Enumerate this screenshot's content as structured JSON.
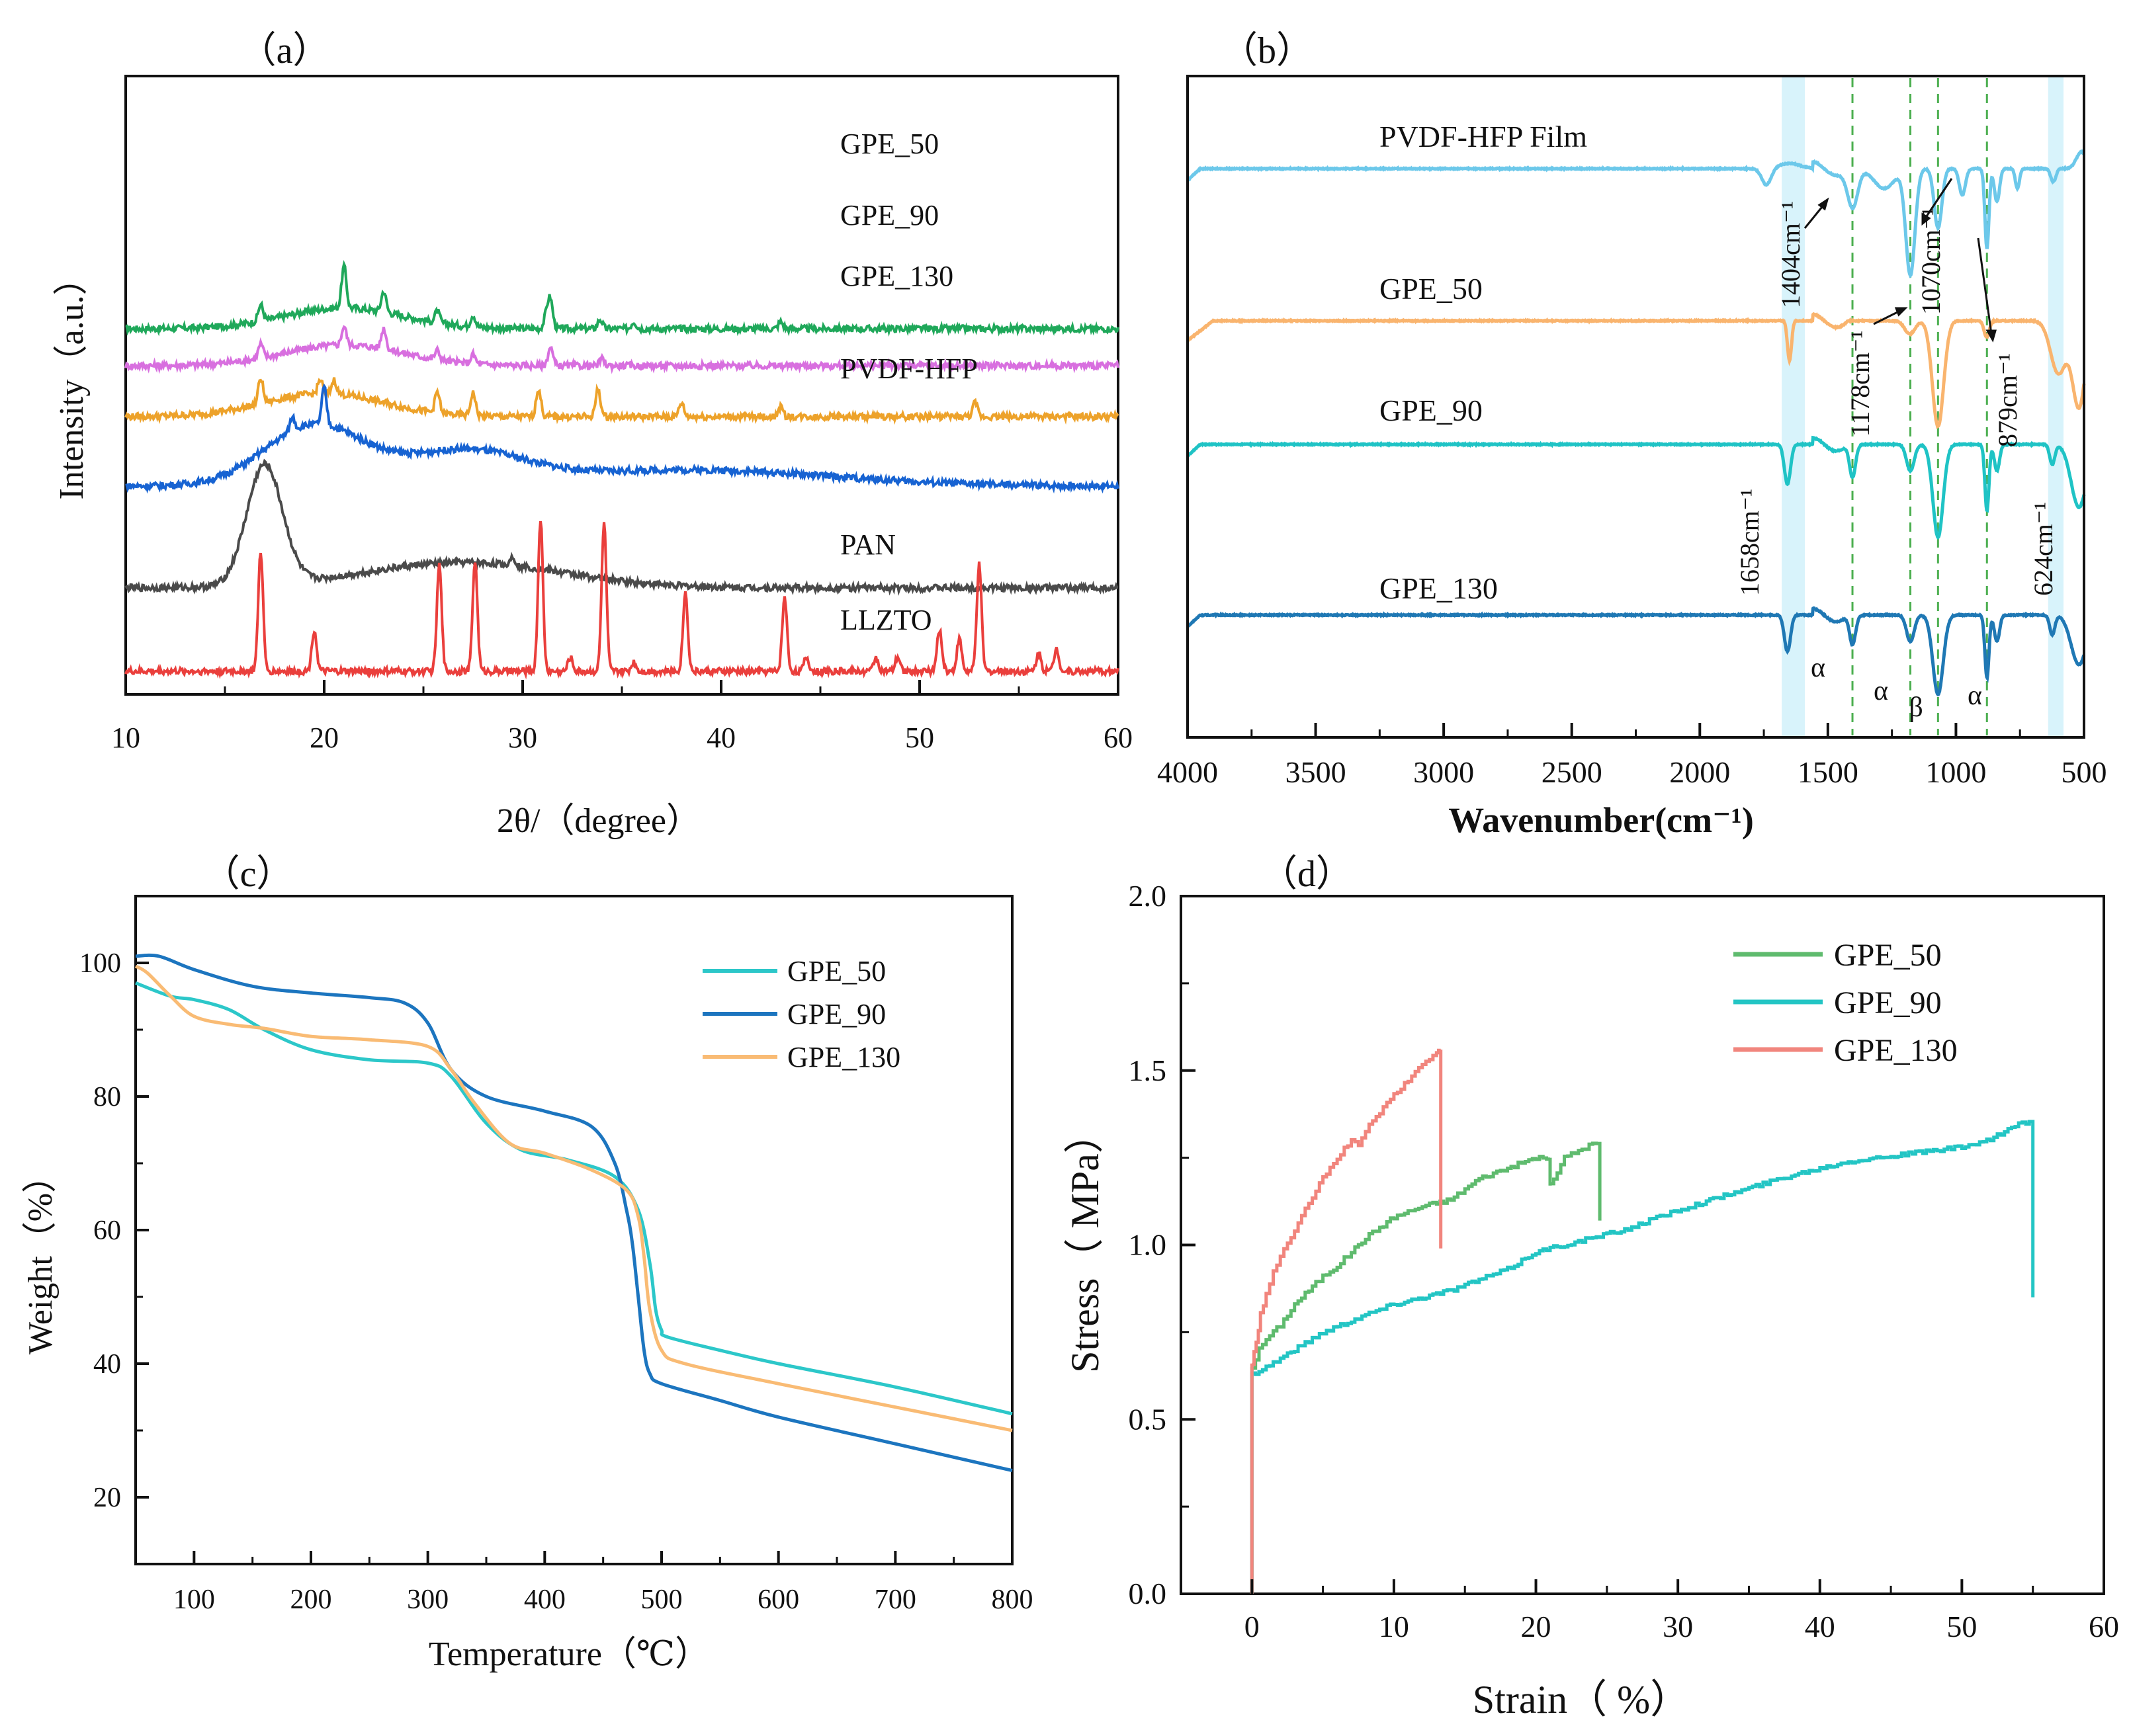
{
  "chart_data": [
    {
      "panel": "(a)",
      "type": "line",
      "title": "",
      "xlabel": "2θ/（degree）",
      "ylabel": "Intensity（a.u.）",
      "xlim": [
        10,
        60
      ],
      "xticks": [
        "10",
        "20",
        "30",
        "40",
        "50",
        "60"
      ],
      "y_ticks_shown": false,
      "series": [
        {
          "name": "GPE_50",
          "color": "#1fa85a",
          "baseline": 7.4,
          "broad": [
            [
              21,
              0.45,
              3
            ]
          ],
          "peaks": [
            [
              16.8,
              0.35
            ],
            [
              21.0,
              0.9
            ],
            [
              23.0,
              0.45
            ],
            [
              25.7,
              0.25
            ],
            [
              27.5,
              0.25
            ],
            [
              31.2,
              0.3
            ],
            [
              31.4,
              0.6
            ],
            [
              33.9,
              0.2
            ],
            [
              35.6,
              0.15
            ],
            [
              43.0,
              0.15
            ]
          ]
        },
        {
          "name": "GPE_90",
          "color": "#d86fdf",
          "baseline": 6.6,
          "broad": [
            [
              21,
              0.45,
              3
            ]
          ],
          "peaks": [
            [
              16.8,
              0.3
            ],
            [
              21.0,
              0.4
            ],
            [
              23.0,
              0.45
            ],
            [
              25.7,
              0.2
            ],
            [
              27.5,
              0.2
            ],
            [
              31.4,
              0.4
            ],
            [
              34.0,
              0.15
            ]
          ]
        },
        {
          "name": "GPE_130",
          "color": "#eda22a",
          "baseline": 5.5,
          "broad": [
            [
              20,
              0.5,
              3
            ]
          ],
          "peaks": [
            [
              16.8,
              0.55
            ],
            [
              19.8,
              0.3
            ],
            [
              20.5,
              0.3
            ],
            [
              25.7,
              0.45
            ],
            [
              27.5,
              0.5
            ],
            [
              30.8,
              0.6
            ],
            [
              33.8,
              0.6
            ],
            [
              38.0,
              0.3
            ],
            [
              43.0,
              0.2
            ],
            [
              52.8,
              0.3
            ]
          ]
        },
        {
          "name": "PVDF-HFP",
          "color": "#1763d2",
          "baseline": 4.0,
          "broad": [
            [
              19.5,
              1.3,
              2.5
            ],
            [
              27,
              0.7,
              3
            ],
            [
              38.5,
              0.35,
              7
            ]
          ],
          "peaks": [
            [
              18.4,
              0.3
            ],
            [
              20.0,
              0.8
            ]
          ]
        },
        {
          "name": "PAN",
          "color": "#4a4a4a",
          "baseline": 1.8,
          "broad": [
            [
              17,
              2.6,
              0.9
            ],
            [
              27,
              0.55,
              5
            ]
          ],
          "peaks": [
            [
              29.5,
              0.2
            ]
          ]
        },
        {
          "name": "LLZTO",
          "color": "#ea3f3c",
          "baseline": 0.0,
          "broad": [],
          "peaks": [
            [
              16.8,
              2.6
            ],
            [
              19.5,
              0.9
            ],
            [
              25.8,
              2.3
            ],
            [
              27.6,
              2.4
            ],
            [
              30.9,
              3.3
            ],
            [
              32.4,
              0.3
            ],
            [
              34.1,
              3.2
            ],
            [
              35.6,
              0.2
            ],
            [
              38.2,
              1.7
            ],
            [
              43.2,
              1.6
            ],
            [
              44.3,
              0.3
            ],
            [
              47.8,
              0.3
            ],
            [
              48.9,
              0.3
            ],
            [
              51.0,
              0.9
            ],
            [
              52.0,
              0.7
            ],
            [
              53.0,
              2.3
            ],
            [
              56.0,
              0.4
            ],
            [
              56.9,
              0.5
            ]
          ]
        }
      ],
      "curve_labels": [
        "GPE_50",
        "GPE_90",
        "GPE_130",
        "PVDF-HFP",
        "PAN",
        "LLZTO"
      ]
    },
    {
      "panel": "(b)",
      "type": "line",
      "xlabel": "Wavenumber(cm⁻¹)",
      "xlim": [
        4000,
        500
      ],
      "xticks": [
        "4000",
        "3500",
        "3000",
        "2500",
        "2000",
        "1500",
        "1000",
        "500"
      ],
      "series": [
        {
          "name": "PVDF-HFP Film",
          "color": "#6cc8ea",
          "label": "PVDF-HFP Film"
        },
        {
          "name": "GPE_50",
          "color": "#f9b46e",
          "label": "GPE_50"
        },
        {
          "name": "GPE_90",
          "color": "#1fc3c5",
          "label": "GPE_90"
        },
        {
          "name": "GPE_130",
          "color": "#1f78b4",
          "label": "GPE_130"
        }
      ],
      "dashed_lines_cm": [
        1404,
        1178,
        1070,
        879
      ],
      "bands_cm": [
        [
          1680,
          1590
        ],
        [
          640,
          580
        ]
      ],
      "annotations": [
        "1404cm⁻¹",
        "1178cm⁻¹",
        "1070cm⁻¹",
        "879cm⁻¹",
        "1658cm⁻¹",
        "624cm⁻¹"
      ],
      "phase_labels": [
        "α",
        "α",
        "β",
        "α"
      ]
    },
    {
      "panel": "(c)",
      "type": "line",
      "xlabel": "Temperature（℃）",
      "ylabel": "Weight（%）",
      "xlim": [
        50,
        800
      ],
      "ylim": [
        10,
        110
      ],
      "xticks": [
        "100",
        "200",
        "300",
        "400",
        "500",
        "600",
        "700",
        "800"
      ],
      "yticks": [
        "20",
        "40",
        "60",
        "80",
        "100"
      ],
      "series": [
        {
          "name": "GPE_50",
          "color": "#2cc7c9",
          "x": [
            50,
            80,
            100,
            130,
            160,
            200,
            250,
            300,
            320,
            350,
            380,
            420,
            460,
            480,
            490,
            495,
            500,
            505,
            550,
            600,
            700,
            800
          ],
          "y": [
            97,
            95,
            94.5,
            93,
            90,
            87,
            85.5,
            85,
            83,
            76,
            72,
            70.5,
            68,
            63,
            55,
            48,
            45,
            44,
            42,
            40,
            36.5,
            32.5
          ]
        },
        {
          "name": "GPE_90",
          "color": "#1c75bf",
          "x": [
            50,
            70,
            100,
            150,
            200,
            250,
            280,
            300,
            320,
            350,
            400,
            440,
            460,
            470,
            475,
            480,
            485,
            490,
            500,
            550,
            600,
            700,
            800
          ],
          "y": [
            101,
            101,
            99,
            96.5,
            95.5,
            94.8,
            94,
            91,
            84,
            80,
            77.8,
            75.5,
            70,
            63,
            58,
            50,
            42,
            38.5,
            37,
            34.5,
            32,
            28,
            24
          ]
        },
        {
          "name": "GPE_130",
          "color": "#f9bb74",
          "x": [
            50,
            60,
            80,
            100,
            130,
            160,
            200,
            250,
            300,
            320,
            340,
            370,
            400,
            440,
            470,
            480,
            485,
            490,
            500,
            520,
            600,
            700,
            800
          ],
          "y": [
            99.5,
            98.5,
            95,
            92,
            90.8,
            90.2,
            89,
            88.5,
            87.5,
            84,
            79,
            73,
            71.5,
            69,
            66,
            62,
            56,
            48,
            42,
            40,
            37,
            33.5,
            30
          ]
        }
      ],
      "legend": [
        "GPE_50",
        "GPE_90",
        "GPE_130"
      ],
      "legend_loc": "top-right"
    },
    {
      "panel": "(d)",
      "type": "line",
      "xlabel": "Strain（ %）",
      "ylabel": "Stress（ MPa）",
      "xlim": [
        -5,
        60
      ],
      "ylim": [
        0,
        2.0
      ],
      "xticks": [
        "0",
        "10",
        "20",
        "30",
        "40",
        "50",
        "60"
      ],
      "yticks": [
        "0.0",
        "0.5",
        "1.0",
        "1.5",
        "2.0"
      ],
      "series": [
        {
          "name": "GPE_50",
          "color": "#5fbb6e",
          "x": [
            0,
            0,
            0.5,
            1,
            2,
            3,
            4,
            5,
            6,
            7,
            8,
            9,
            10,
            12,
            14,
            16,
            18,
            20,
            21,
            21,
            22,
            23,
            24,
            24.5,
            24.5
          ],
          "y": [
            0,
            0.65,
            0.7,
            0.73,
            0.77,
            0.83,
            0.87,
            0.91,
            0.94,
            0.98,
            1.02,
            1.05,
            1.08,
            1.11,
            1.13,
            1.19,
            1.22,
            1.25,
            1.25,
            1.17,
            1.25,
            1.27,
            1.29,
            1.29,
            1.07
          ]
        },
        {
          "name": "GPE_90",
          "color": "#23c5c4",
          "x": [
            0,
            0,
            1,
            3,
            5,
            8,
            10,
            14,
            18,
            20,
            24,
            26,
            30,
            34,
            38,
            42,
            46,
            50,
            52,
            54,
            55,
            55
          ],
          "y": [
            0,
            0.63,
            0.65,
            0.7,
            0.75,
            0.8,
            0.83,
            0.87,
            0.93,
            0.98,
            1.02,
            1.04,
            1.1,
            1.15,
            1.2,
            1.24,
            1.26,
            1.28,
            1.3,
            1.35,
            1.35,
            0.85
          ]
        },
        {
          "name": "GPE_130",
          "color": "#f1857d",
          "x": [
            0,
            0,
            0.3,
            0.6,
            1,
            1.5,
            2,
            3,
            4,
            5,
            6,
            7,
            7.5,
            8,
            9,
            10,
            11,
            12,
            13,
            13.3,
            13.3
          ],
          "y": [
            0,
            0.66,
            0.72,
            0.8,
            0.86,
            0.92,
            0.97,
            1.04,
            1.12,
            1.19,
            1.25,
            1.3,
            1.28,
            1.33,
            1.38,
            1.43,
            1.47,
            1.52,
            1.55,
            1.56,
            0.99
          ]
        }
      ],
      "legend": [
        "GPE_50",
        "GPE_90",
        "GPE_130"
      ],
      "legend_loc": "top-right"
    }
  ],
  "panel_labels": [
    "（a）",
    "（b）",
    "（c）",
    "（d）"
  ]
}
